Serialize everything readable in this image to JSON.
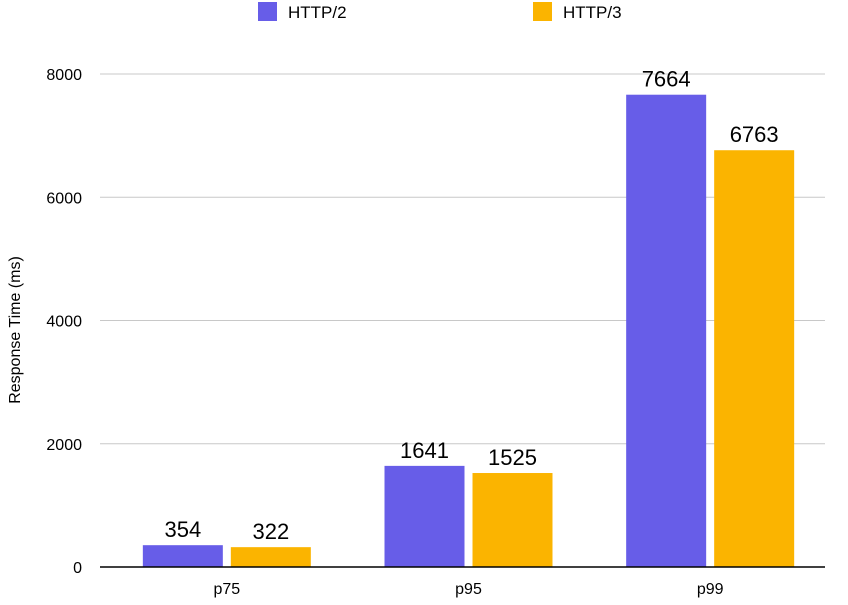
{
  "chart_data": {
    "type": "bar",
    "title": "",
    "xlabel": "",
    "ylabel": "Response Time (ms)",
    "categories": [
      "p75",
      "p95",
      "p99"
    ],
    "series": [
      {
        "name": "HTTP/2",
        "values": [
          354,
          1641,
          7664
        ],
        "color": "#675de8"
      },
      {
        "name": "HTTP/3",
        "values": [
          322,
          1525,
          6763
        ],
        "color": "#fbb400"
      }
    ],
    "ylim": [
      0,
      8000
    ],
    "yticks": [
      "0",
      "2000",
      "4000",
      "6000",
      "8000"
    ],
    "grid": true,
    "legend_position": "top-center",
    "data_labels": true
  }
}
